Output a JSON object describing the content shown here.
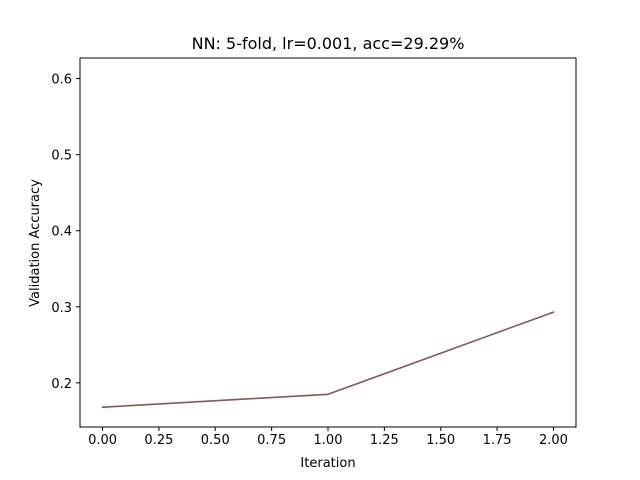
{
  "chart_data": {
    "type": "line",
    "title": "NN: 5-fold, lr=0.001, acc=29.29%",
    "xlabel": "Iteration",
    "ylabel": "Validation Accuracy",
    "xlim": [
      -0.1,
      2.1
    ],
    "ylim": [
      0.142,
      0.627
    ],
    "xticks": [
      0.0,
      0.25,
      0.5,
      0.75,
      1.0,
      1.25,
      1.5,
      1.75,
      2.0
    ],
    "xtick_labels": [
      "0.00",
      "0.25",
      "0.50",
      "0.75",
      "1.00",
      "1.25",
      "1.50",
      "1.75",
      "2.00"
    ],
    "yticks": [
      0.2,
      0.3,
      0.4,
      0.5,
      0.6
    ],
    "ytick_labels": [
      "0.2",
      "0.3",
      "0.4",
      "0.5",
      "0.6"
    ],
    "grid": false,
    "series": [
      {
        "color": "#8c564b",
        "x": [
          0,
          1,
          2
        ],
        "y": [
          0.168,
          0.185,
          0.293
        ]
      }
    ]
  }
}
